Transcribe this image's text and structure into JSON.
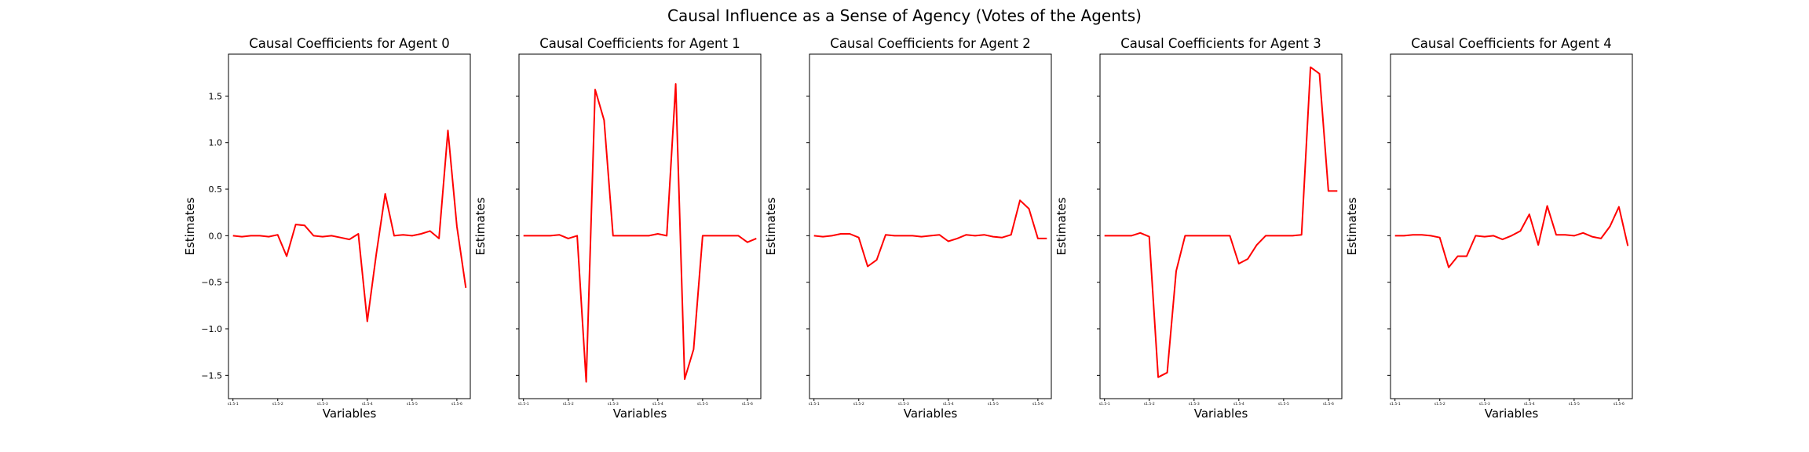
{
  "suptitle": "Causal Influence as a Sense of Agency (Votes of the Agents)",
  "chart_data": {
    "type": "line",
    "shared_y": true,
    "ylim": [
      -1.75,
      1.95
    ],
    "yticks": [
      -1.5,
      -1.0,
      -0.5,
      0.0,
      0.5,
      1.0,
      1.5
    ],
    "ytick_labels": [
      "−1.5",
      "−1.0",
      "−0.5",
      "0.0",
      "0.5",
      "1.0",
      "1.5"
    ],
    "xlim": [
      -0.5,
      26.5
    ],
    "xticks": [
      0,
      5,
      10,
      15,
      20,
      25
    ],
    "xtick_labels": [
      "s1.5-1",
      "s1.5-2",
      "s1.5-3",
      "s1.5-4",
      "s1.5-5",
      "s1.5-6"
    ],
    "grid": false,
    "panels": [
      {
        "title": "Causal Coefficients for Agent 0",
        "xlabel": "Variables",
        "ylabel": "Estimates",
        "values": [
          0.0,
          -0.01,
          0.0,
          0.0,
          -0.01,
          0.01,
          -0.22,
          0.12,
          0.11,
          0.0,
          -0.01,
          0.0,
          -0.02,
          -0.04,
          0.02,
          -0.92,
          -0.2,
          0.45,
          0.0,
          0.01,
          0.0,
          0.02,
          0.05,
          -0.03,
          1.13,
          0.1,
          -0.56
        ]
      },
      {
        "title": "Causal Coefficients for Agent 1",
        "xlabel": "Variables",
        "ylabel": "Estimates",
        "values": [
          0.0,
          0.0,
          0.0,
          0.0,
          0.01,
          -0.03,
          0.0,
          -1.57,
          1.57,
          1.24,
          0.0,
          0.0,
          0.0,
          0.0,
          0.0,
          0.02,
          0.0,
          1.63,
          -1.54,
          -1.22,
          0.0,
          0.0,
          0.0,
          0.0,
          0.0,
          -0.07,
          -0.03
        ]
      },
      {
        "title": "Causal Coefficients for Agent 2",
        "xlabel": "Variables",
        "ylabel": "Estimates",
        "values": [
          0.0,
          -0.01,
          0.0,
          0.02,
          0.02,
          -0.02,
          -0.33,
          -0.26,
          0.01,
          0.0,
          0.0,
          0.0,
          -0.01,
          0.0,
          0.01,
          -0.06,
          -0.03,
          0.01,
          0.0,
          0.01,
          -0.01,
          -0.02,
          0.01,
          0.38,
          0.29,
          -0.03,
          -0.03
        ]
      },
      {
        "title": "Causal Coefficients for Agent 3",
        "xlabel": "Variables",
        "ylabel": "Estimates",
        "values": [
          0.0,
          0.0,
          0.0,
          0.0,
          0.03,
          -0.01,
          -1.52,
          -1.47,
          -0.38,
          0.0,
          0.0,
          0.0,
          0.0,
          0.0,
          0.0,
          -0.3,
          -0.25,
          -0.1,
          0.0,
          0.0,
          0.0,
          0.0,
          0.01,
          1.81,
          1.74,
          0.48,
          0.48
        ]
      },
      {
        "title": "Causal Coefficients for Agent 4",
        "xlabel": "Variables",
        "ylabel": "Estimates",
        "values": [
          0.0,
          0.0,
          0.01,
          0.01,
          0.0,
          -0.02,
          -0.34,
          -0.22,
          -0.22,
          0.0,
          -0.01,
          0.0,
          -0.04,
          0.0,
          0.05,
          0.23,
          -0.1,
          0.32,
          0.01,
          0.01,
          0.0,
          0.03,
          -0.01,
          -0.03,
          0.1,
          0.31,
          -0.11
        ]
      }
    ]
  }
}
